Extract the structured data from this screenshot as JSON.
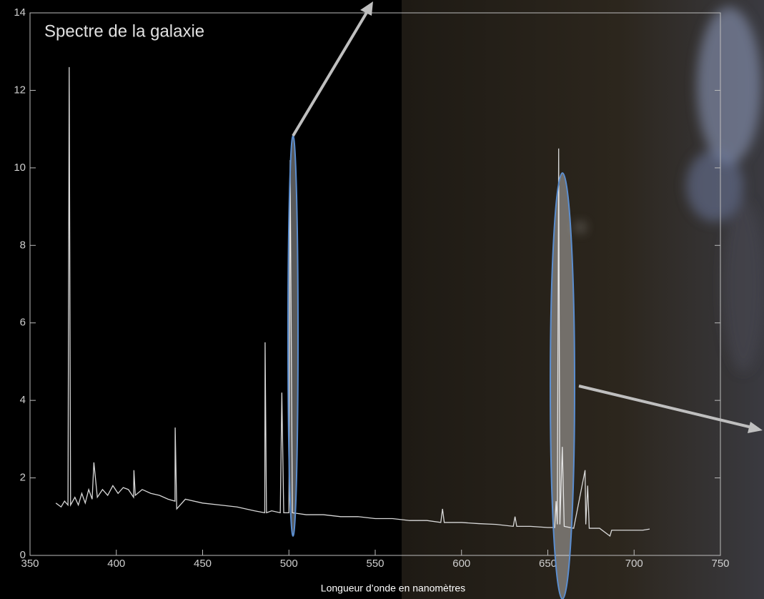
{
  "chart_data": {
    "type": "line",
    "title": "Spectre de la galaxie",
    "x_label": "Longueur d’onde en nanomètres",
    "xlim": [
      350,
      750
    ],
    "xticks": [
      350,
      400,
      450,
      500,
      550,
      600,
      650,
      700,
      750
    ],
    "ylim": [
      0,
      14
    ],
    "yticks": [
      0,
      2,
      4,
      6,
      8,
      10,
      12,
      14
    ],
    "grid": false,
    "color": "#d8d8d8",
    "x": [
      365,
      368,
      370,
      372,
      372.7,
      373.5,
      376,
      378,
      380,
      382,
      384,
      386,
      387,
      389,
      392,
      395,
      398,
      401,
      404,
      407,
      410,
      410.2,
      411,
      415,
      420,
      425,
      430,
      434,
      434.1,
      435,
      440,
      450,
      460,
      470,
      480,
      486,
      486.2,
      487,
      490,
      495,
      495.9,
      497,
      500,
      500.7,
      502,
      510,
      520,
      530,
      540,
      550,
      560,
      570,
      580,
      588,
      589,
      590,
      600,
      610,
      620,
      630,
      631,
      632,
      640,
      650,
      654,
      654.8,
      655.5,
      656.3,
      657,
      658.4,
      659.5,
      665,
      671.6,
      672,
      673.1,
      674,
      680,
      686,
      687,
      695,
      705,
      709
    ],
    "values": [
      1.35,
      1.25,
      1.4,
      1.3,
      12.6,
      1.3,
      1.5,
      1.3,
      1.6,
      1.35,
      1.7,
      1.45,
      2.4,
      1.5,
      1.7,
      1.55,
      1.8,
      1.6,
      1.75,
      1.7,
      1.5,
      2.2,
      1.55,
      1.7,
      1.6,
      1.55,
      1.45,
      1.4,
      3.3,
      1.2,
      1.45,
      1.35,
      1.3,
      1.25,
      1.15,
      1.1,
      5.5,
      1.1,
      1.15,
      1.1,
      4.2,
      1.1,
      1.1,
      10.2,
      1.1,
      1.05,
      1.05,
      1.0,
      1.0,
      0.95,
      0.95,
      0.9,
      0.9,
      0.85,
      1.2,
      0.85,
      0.85,
      0.82,
      0.8,
      0.75,
      1.0,
      0.75,
      0.75,
      0.72,
      0.72,
      1.4,
      0.8,
      10.5,
      0.8,
      2.8,
      0.75,
      0.7,
      2.2,
      0.8,
      1.8,
      0.7,
      0.7,
      0.5,
      0.65,
      0.65,
      0.65,
      0.68
    ]
  }
}
